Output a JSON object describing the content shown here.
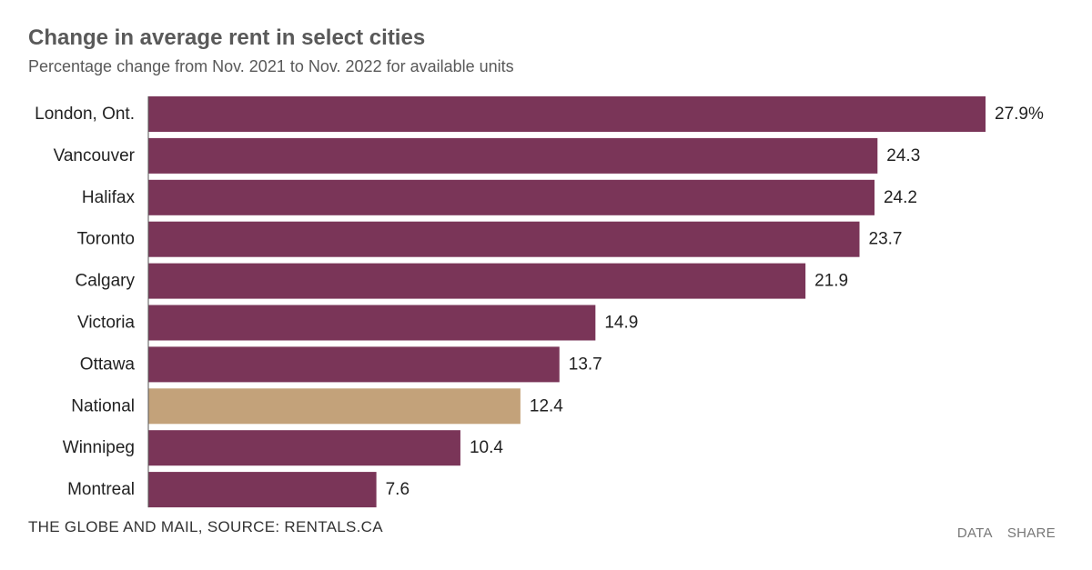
{
  "header": {
    "title": "Change in average rent in select cities",
    "subtitle": "Percentage change from Nov. 2021 to Nov. 2022 for available units"
  },
  "colors": {
    "bar": "#7a3558",
    "highlight": "#c3a27a",
    "label_text": "#222222"
  },
  "chart_data": {
    "type": "bar",
    "orientation": "horizontal",
    "categories": [
      "London, Ont.",
      "Vancouver",
      "Halifax",
      "Toronto",
      "Calgary",
      "Victoria",
      "Ottawa",
      "National",
      "Winnipeg",
      "Montreal"
    ],
    "values": [
      27.9,
      24.3,
      24.2,
      23.7,
      21.9,
      14.9,
      13.7,
      12.4,
      10.4,
      7.6
    ],
    "data_labels": [
      "27.9%",
      "24.3",
      "24.2",
      "23.7",
      "21.9",
      "14.9",
      "13.7",
      "12.4",
      "10.4",
      "7.6"
    ],
    "highlight_category": "National",
    "xlim": [
      0,
      27.9
    ],
    "grid": false
  },
  "footer": {
    "source": "THE GLOBE AND MAIL, SOURCE: RENTALS.CA",
    "links": [
      "DATA",
      "SHARE"
    ]
  }
}
